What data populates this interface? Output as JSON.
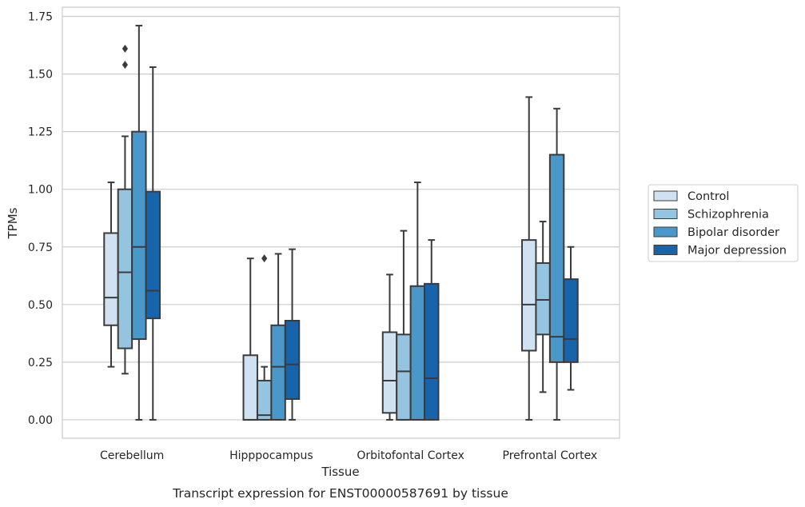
{
  "chart_data": {
    "type": "box",
    "categories": [
      "Cerebellum",
      "Hipppocampus",
      "Orbitofontal Cortex",
      "Prefrontal Cortex"
    ],
    "xlabel": "Tissue",
    "ylabel": "TPMs",
    "caption": "Transcript expression for ENST00000587691 by tissue",
    "ylim": [
      -0.08,
      1.79
    ],
    "yticks": [
      0.0,
      0.25,
      0.5,
      0.75,
      1.0,
      1.25,
      1.5,
      1.75
    ],
    "ytick_labels": [
      "0.00",
      "0.25",
      "0.50",
      "0.75",
      "1.00",
      "1.25",
      "1.50",
      "1.75"
    ],
    "grid": "horizontal",
    "legend_position": "right",
    "series": [
      {
        "name": "Control",
        "color": "#d0e1f2",
        "boxes": [
          {
            "whislo": 0.23,
            "q1": 0.41,
            "med": 0.53,
            "q3": 0.81,
            "whishi": 1.03,
            "fliers": []
          },
          {
            "whislo": 0.0,
            "q1": 0.0,
            "med": 0.0,
            "q3": 0.28,
            "whishi": 0.7,
            "fliers": []
          },
          {
            "whislo": 0.0,
            "q1": 0.03,
            "med": 0.17,
            "q3": 0.38,
            "whishi": 0.63,
            "fliers": []
          },
          {
            "whislo": 0.0,
            "q1": 0.3,
            "med": 0.5,
            "q3": 0.78,
            "whishi": 1.4,
            "fliers": []
          }
        ]
      },
      {
        "name": "Schizophrenia",
        "color": "#94c4df",
        "boxes": [
          {
            "whislo": 0.2,
            "q1": 0.31,
            "med": 0.64,
            "q3": 1.0,
            "whishi": 1.23,
            "fliers": [
              1.54,
              1.61
            ]
          },
          {
            "whislo": 0.0,
            "q1": 0.0,
            "med": 0.02,
            "q3": 0.17,
            "whishi": 0.23,
            "fliers": [
              0.7
            ]
          },
          {
            "whislo": 0.0,
            "q1": 0.0,
            "med": 0.21,
            "q3": 0.37,
            "whishi": 0.82,
            "fliers": []
          },
          {
            "whislo": 0.12,
            "q1": 0.37,
            "med": 0.52,
            "q3": 0.68,
            "whishi": 0.86,
            "fliers": []
          }
        ]
      },
      {
        "name": "Bipolar disorder",
        "color": "#4a98c9",
        "boxes": [
          {
            "whislo": 0.0,
            "q1": 0.35,
            "med": 0.75,
            "q3": 1.25,
            "whishi": 1.71,
            "fliers": []
          },
          {
            "whislo": 0.0,
            "q1": 0.0,
            "med": 0.23,
            "q3": 0.41,
            "whishi": 0.72,
            "fliers": []
          },
          {
            "whislo": 0.0,
            "q1": 0.0,
            "med": 0.0,
            "q3": 0.58,
            "whishi": 1.03,
            "fliers": []
          },
          {
            "whislo": 0.0,
            "q1": 0.25,
            "med": 0.36,
            "q3": 1.15,
            "whishi": 1.35,
            "fliers": []
          }
        ]
      },
      {
        "name": "Major depression",
        "color": "#1764ab",
        "boxes": [
          {
            "whislo": 0.0,
            "q1": 0.44,
            "med": 0.56,
            "q3": 0.99,
            "whishi": 1.53,
            "fliers": []
          },
          {
            "whislo": 0.0,
            "q1": 0.09,
            "med": 0.24,
            "q3": 0.43,
            "whishi": 0.74,
            "fliers": []
          },
          {
            "whislo": 0.0,
            "q1": 0.0,
            "med": 0.18,
            "q3": 0.59,
            "whishi": 0.78,
            "fliers": []
          },
          {
            "whislo": 0.13,
            "q1": 0.25,
            "med": 0.35,
            "q3": 0.61,
            "whishi": 0.75,
            "fliers": []
          }
        ]
      }
    ]
  }
}
